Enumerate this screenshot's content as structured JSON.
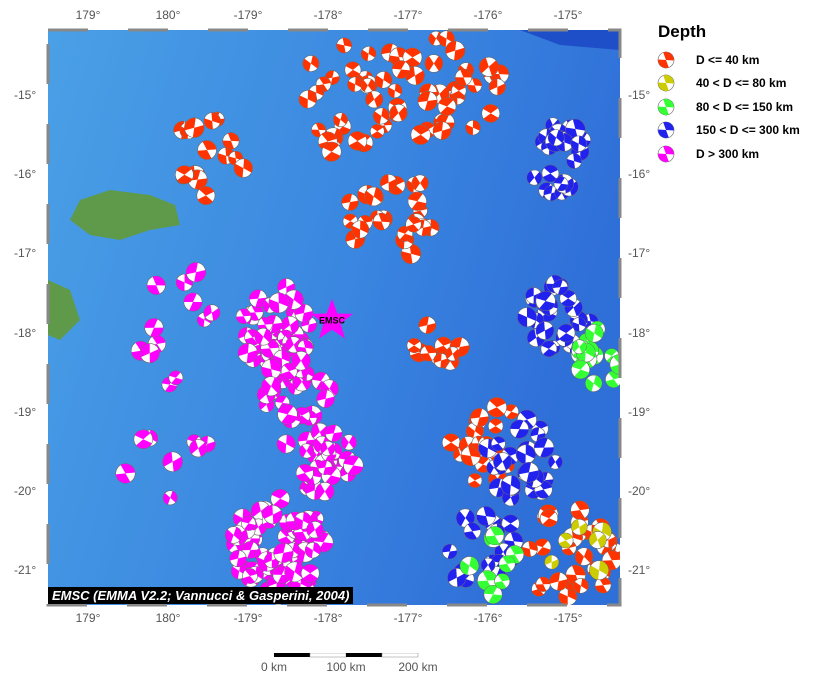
{
  "map": {
    "extent": {
      "lon_min": 178.5,
      "lon_max": 185.65,
      "lat_min": -21.45,
      "lat_max": -14.2
    },
    "lon_ticks": [
      "179°",
      "180°",
      "-179°",
      "-178°",
      "-177°",
      "-176°",
      "-175°"
    ],
    "lat_ticks": [
      "-15°",
      "-16°",
      "-17°",
      "-18°",
      "-19°",
      "-20°",
      "-21°"
    ],
    "station_label": "EMSC",
    "station": {
      "lon": 182.05,
      "lat": -17.85
    },
    "credit": "EMSC (EMMA V2.2; Vannucci & Gasperini, 2004)",
    "scale": {
      "labels": [
        "0 km",
        "100 km",
        "200 km"
      ]
    },
    "event_clusters": [
      {
        "lon": 181.3,
        "lat": -17.9,
        "spread": 0.4,
        "n": 45,
        "depth": 4
      },
      {
        "lon": 181.6,
        "lat": -18.6,
        "spread": 0.4,
        "n": 30,
        "depth": 4
      },
      {
        "lon": 181.9,
        "lat": -19.5,
        "spread": 0.4,
        "n": 30,
        "depth": 4
      },
      {
        "lon": 181.4,
        "lat": -20.7,
        "spread": 0.5,
        "n": 70,
        "depth": 4
      },
      {
        "lon": 180.3,
        "lat": -18.0,
        "spread": 0.6,
        "n": 12,
        "depth": 4
      },
      {
        "lon": 180.0,
        "lat": -19.6,
        "spread": 0.5,
        "n": 8,
        "depth": 4
      },
      {
        "lon": 182.3,
        "lat": -15.0,
        "spread": 0.6,
        "n": 30,
        "depth": 0
      },
      {
        "lon": 183.5,
        "lat": -14.9,
        "spread": 0.6,
        "n": 30,
        "depth": 0
      },
      {
        "lon": 180.5,
        "lat": -15.8,
        "spread": 0.4,
        "n": 15,
        "depth": 0
      },
      {
        "lon": 182.8,
        "lat": -16.6,
        "spread": 0.5,
        "n": 25,
        "depth": 0
      },
      {
        "lon": 183.4,
        "lat": -18.0,
        "spread": 0.3,
        "n": 10,
        "depth": 0
      },
      {
        "lon": 184.0,
        "lat": -19.4,
        "spread": 0.4,
        "n": 20,
        "depth": 0
      },
      {
        "lon": 185.0,
        "lat": -20.8,
        "spread": 0.5,
        "n": 30,
        "depth": 0
      },
      {
        "lon": 184.8,
        "lat": -15.8,
        "spread": 0.4,
        "n": 25,
        "depth": 3
      },
      {
        "lon": 184.9,
        "lat": -17.8,
        "spread": 0.35,
        "n": 25,
        "depth": 3
      },
      {
        "lon": 184.4,
        "lat": -19.6,
        "spread": 0.4,
        "n": 25,
        "depth": 3
      },
      {
        "lon": 183.9,
        "lat": -20.7,
        "spread": 0.4,
        "n": 20,
        "depth": 3
      },
      {
        "lon": 185.4,
        "lat": -18.3,
        "spread": 0.3,
        "n": 15,
        "depth": 2
      },
      {
        "lon": 184.2,
        "lat": -21.0,
        "spread": 0.4,
        "n": 8,
        "depth": 2
      },
      {
        "lon": 185.2,
        "lat": -20.9,
        "spread": 0.4,
        "n": 6,
        "depth": 1
      }
    ]
  },
  "legend": {
    "title": "Depth",
    "items": [
      {
        "label": "D <= 40 km",
        "color": "#ff3300"
      },
      {
        "label": "40 < D <= 80 km",
        "color": "#cccc00"
      },
      {
        "label": "80 < D <= 150 km",
        "color": "#33ff33"
      },
      {
        "label": "150 < D <= 300 km",
        "color": "#2222ee"
      },
      {
        "label": "D > 300 km",
        "color": "#ff00ff"
      }
    ]
  }
}
